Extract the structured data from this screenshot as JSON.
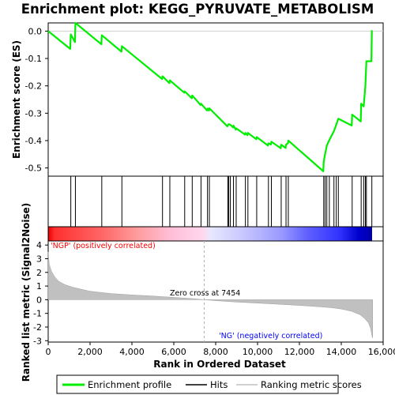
{
  "chart_data": {
    "type": "line",
    "title": "Enrichment plot: KEGG_PYRUVATE_METABOLISM",
    "xlabel": "Rank in Ordered Dataset",
    "ylabel_top": "Enrichment score (ES)",
    "ylabel_bottom": "Ranked list metric (Signal2Noise)",
    "xlim": [
      0,
      16000
    ],
    "x_ticks": [
      0,
      2000,
      4000,
      6000,
      8000,
      10000,
      12000,
      14000,
      16000
    ],
    "x_tick_labels": [
      "0",
      "2,000",
      "4,000",
      "6,000",
      "8,000",
      "10,000",
      "12,000",
      "14,000",
      "16,000"
    ],
    "es_ylim": [
      -0.53,
      0.03
    ],
    "es_ticks": [
      0.0,
      -0.1,
      -0.2,
      -0.3,
      -0.4,
      -0.5
    ],
    "es_tick_labels": [
      "0.0",
      "-0.1",
      "-0.2",
      "-0.3",
      "-0.4",
      "-0.5"
    ],
    "metric_ylim": [
      -3.1,
      4.3
    ],
    "metric_ticks": [
      4,
      3,
      2,
      1,
      0,
      -1,
      -2,
      -3
    ],
    "metric_tick_labels": [
      "4",
      "3",
      "2",
      "1",
      "0",
      "-1",
      "-2",
      "-3"
    ],
    "n_genes": 15500,
    "zero_cross": 7454,
    "zero_cross_label": "Zero cross at 7454",
    "pos_label": "'NGP' (positively correlated)",
    "neg_label": "'NG' (negatively correlated)",
    "hits": [
      1080,
      1300,
      2560,
      3520,
      5460,
      5810,
      6520,
      6880,
      7300,
      7610,
      7700,
      8580,
      8620,
      8700,
      8850,
      8980,
      9420,
      9540,
      9960,
      10520,
      10660,
      11130,
      11360,
      11470,
      13160,
      13230,
      13310,
      13430,
      13650,
      13760,
      13860,
      14520,
      14950,
      15070,
      15150,
      15200,
      15460
    ],
    "es_profile": {
      "x": [
        0,
        1050,
        1080,
        1280,
        1300,
        2540,
        2560,
        3500,
        3520,
        5440,
        5460,
        5790,
        5810,
        6500,
        6520,
        6860,
        6880,
        7280,
        7300,
        7590,
        7610,
        7680,
        7700,
        8560,
        8580,
        8620,
        8700,
        8830,
        8850,
        8960,
        8980,
        9400,
        9420,
        9520,
        9540,
        9940,
        9960,
        10500,
        10520,
        10640,
        10660,
        11110,
        11130,
        11340,
        11360,
        11450,
        11470,
        13140,
        13160,
        13230,
        13310,
        13430,
        13650,
        13760,
        13860,
        14500,
        14520,
        14930,
        14950,
        15070,
        15150,
        15200,
        15440,
        15460
      ],
      "y": [
        0.0,
        -0.065,
        -0.012,
        -0.04,
        0.03,
        -0.048,
        -0.015,
        -0.075,
        -0.055,
        -0.175,
        -0.165,
        -0.19,
        -0.18,
        -0.225,
        -0.22,
        -0.245,
        -0.235,
        -0.27,
        -0.265,
        -0.29,
        -0.283,
        -0.29,
        -0.282,
        -0.348,
        -0.345,
        -0.34,
        -0.342,
        -0.352,
        -0.345,
        -0.36,
        -0.355,
        -0.378,
        -0.372,
        -0.38,
        -0.372,
        -0.395,
        -0.387,
        -0.418,
        -0.41,
        -0.414,
        -0.404,
        -0.428,
        -0.415,
        -0.427,
        -0.415,
        -0.41,
        -0.4,
        -0.512,
        -0.478,
        -0.448,
        -0.418,
        -0.398,
        -0.365,
        -0.342,
        -0.32,
        -0.345,
        -0.305,
        -0.33,
        -0.265,
        -0.275,
        -0.2,
        -0.11,
        -0.11,
        0.003
      ]
    },
    "ranked_metric": {
      "x": [
        0,
        50,
        150,
        300,
        500,
        800,
        1200,
        2000,
        3000,
        4000,
        5000,
        6000,
        7000,
        7454,
        8000,
        9000,
        10000,
        11000,
        12000,
        13000,
        13500,
        14000,
        14500,
        14900,
        15100,
        15300,
        15400,
        15460,
        15500
      ],
      "y": [
        3.5,
        2.6,
        2.1,
        1.7,
        1.35,
        1.1,
        0.9,
        0.62,
        0.45,
        0.35,
        0.27,
        0.17,
        0.07,
        0.0,
        -0.07,
        -0.17,
        -0.25,
        -0.33,
        -0.42,
        -0.52,
        -0.58,
        -0.68,
        -0.85,
        -1.1,
        -1.35,
        -1.7,
        -2.1,
        -2.6,
        -2.8
      ]
    },
    "legend": {
      "placement": "bottom",
      "items": [
        "Enrichment profile",
        "Hits",
        "Ranking metric scores"
      ]
    },
    "colors": {
      "profile": "#00ee00",
      "metric_fill": "#c0c0c0",
      "pos_text": "#ff0000",
      "neg_text": "#0000ff",
      "bar_red": "#ff0000",
      "bar_blue": "#0000ff"
    }
  }
}
